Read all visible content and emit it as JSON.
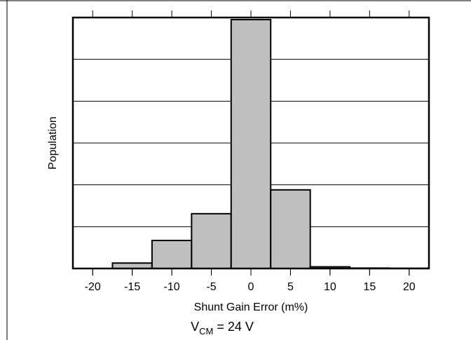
{
  "chart_data": {
    "type": "bar",
    "title": "",
    "xlabel": "Shunt Gain Error (m%)",
    "ylabel": "Population",
    "footnote": {
      "main": "V",
      "sub": "CM",
      "rest": " = 24 V"
    },
    "xlim": [
      -22.5,
      22.5
    ],
    "ylim": [
      0,
      6
    ],
    "grid": true,
    "xticks": [
      -20,
      -15,
      -10,
      -5,
      0,
      5,
      10,
      15,
      20
    ],
    "bins": [
      {
        "x0": -17.5,
        "x1": -12.5,
        "value": 0.13
      },
      {
        "x0": -12.5,
        "x1": -7.5,
        "value": 0.67
      },
      {
        "x0": -7.5,
        "x1": -2.5,
        "value": 1.31
      },
      {
        "x0": -2.5,
        "x1": 2.5,
        "value": 5.95
      },
      {
        "x0": 2.5,
        "x1": 7.5,
        "value": 1.88
      },
      {
        "x0": 7.5,
        "x1": 12.5,
        "value": 0.04
      },
      {
        "x0": 12.5,
        "x1": 17.5,
        "value": 0.01
      },
      {
        "x0": 17.5,
        "x1": 22.5,
        "value": 0.005
      }
    ],
    "bar_color": "#bfbfbf"
  }
}
